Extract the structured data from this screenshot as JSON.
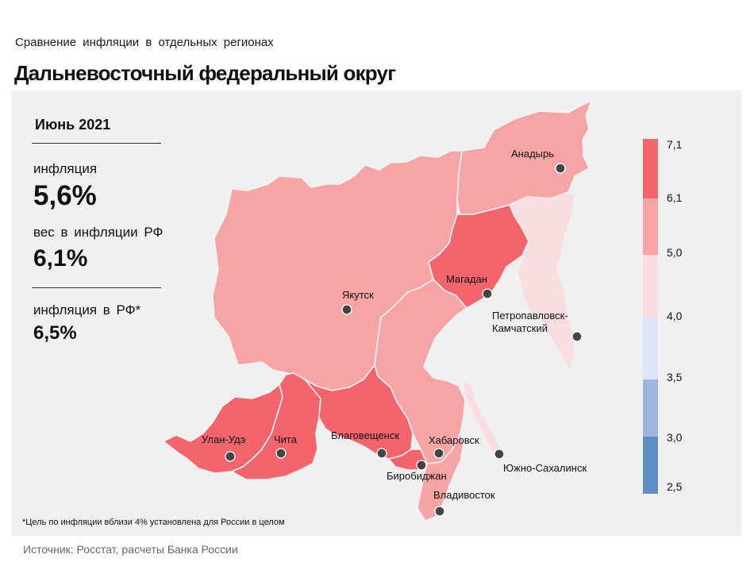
{
  "header": {
    "supertitle": "Сравнение инфляции в отдельных регионах",
    "title": "Дальневосточный федеральный округ"
  },
  "summary": {
    "period": "Июнь 2021",
    "inflation_label": "инфляция",
    "inflation_value": "5,6%",
    "weight_label": "вес в инфляции РФ",
    "weight_value": "6,1%",
    "rf_label": "инфляция в РФ*",
    "rf_value": "6,5%"
  },
  "cities": {
    "anadyr": "Анадырь",
    "magadan": "Магадан",
    "yakutsk": "Якутск",
    "petropavlovsk_1": "Петропавловск-",
    "petropavlovsk_2": "Камчатский",
    "ulan_ude": "Улан-Удэ",
    "chita": "Чита",
    "blagoveshchensk": "Благовещенск",
    "khabarovsk": "Хабаровск",
    "birobidzhan": "Биробиджан",
    "yuzhno": "Южно-Сахалинск",
    "vladivostok": "Владивосток"
  },
  "legend": {
    "colors": [
      "#f4646c",
      "#f7a4a7",
      "#f9dde0",
      "#dbe5f4",
      "#9db7dc",
      "#5f8dc6"
    ],
    "ticks": [
      "7,1",
      "6,1",
      "5,0",
      "4,0",
      "3,5",
      "3,0",
      "2,5"
    ]
  },
  "region_colors": {
    "high": "#f4646c",
    "mid": "#f7a4a7",
    "low": "#f9dde0"
  },
  "footnote": "*Цель по инфляции вблизи 4% установлена для России в целом",
  "source": "Источник: Росстат, расчеты Банка России"
}
